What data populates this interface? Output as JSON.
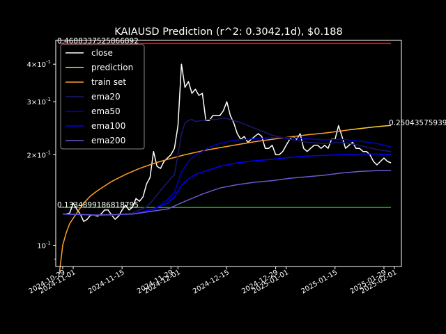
{
  "chart_data": {
    "type": "line",
    "title": "KAIAUSD Prediction (r^2: 0.3042,1d), $0.188",
    "xlabel": "",
    "ylabel": "",
    "y_scale": "log",
    "ylim": [
      0.085,
      0.48
    ],
    "xlim": [
      "2024-10-27",
      "2025-02-03"
    ],
    "grid": false,
    "legend_position": "top-left",
    "x_ticks": [
      "2024-10-29",
      "2024-11-01",
      "2024-11-15",
      "2024-11-29",
      "2024-12-01",
      "2024-12-15",
      "2024-12-29",
      "2025-01-01",
      "2025-01-15",
      "2025-01-29",
      "2025-02-01"
    ],
    "y_ticks": [
      {
        "value": 0.1,
        "label": "10^-1"
      },
      {
        "value": 0.2,
        "label": "2×10^-1"
      },
      {
        "value": 0.3,
        "label": "3×10^-1"
      },
      {
        "value": 0.4,
        "label": "4×10^-1"
      }
    ],
    "annotations": [
      {
        "text": "0.4688337525866892",
        "x": "2024-10-29",
        "y": 0.4688
      },
      {
        "text": "0.1334899186818795",
        "x": "2024-10-29",
        "y": 0.1335
      },
      {
        "text": "0.25043575939",
        "x": "2025-02-01",
        "y": 0.2504
      }
    ],
    "hlines": [
      {
        "y": 0.4688,
        "color": "#ff0000"
      },
      {
        "y": 0.1335,
        "color": "#00c000"
      }
    ],
    "start_date": "2024-10-29",
    "series": [
      {
        "name": "close",
        "color": "#ffffff",
        "days": [
          0,
          1,
          2,
          3,
          4,
          5,
          6,
          7,
          8,
          9,
          10,
          11,
          12,
          13,
          14,
          15,
          16,
          17,
          18,
          19,
          20,
          21,
          22,
          23,
          24,
          25,
          26,
          27,
          28,
          29,
          30,
          31,
          32,
          33,
          34,
          35,
          36,
          37,
          38,
          39,
          40,
          41,
          42,
          43,
          44,
          45,
          46,
          47,
          48,
          49,
          50,
          51,
          52,
          53,
          54,
          55,
          56,
          57,
          58,
          59,
          60,
          61,
          62,
          63,
          64,
          65,
          66,
          67,
          68,
          69,
          70,
          71,
          72,
          73,
          74,
          75,
          76,
          77,
          78,
          79,
          80,
          81,
          82,
          83,
          84,
          85,
          86,
          87,
          88,
          89,
          90,
          91,
          92,
          93,
          94
        ],
        "values": [
          0.127,
          0.127,
          0.128,
          0.138,
          0.132,
          0.127,
          0.12,
          0.122,
          0.126,
          0.126,
          0.125,
          0.127,
          0.131,
          0.131,
          0.126,
          0.122,
          0.125,
          0.131,
          0.136,
          0.131,
          0.134,
          0.143,
          0.14,
          0.145,
          0.16,
          0.168,
          0.205,
          0.183,
          0.18,
          0.19,
          0.195,
          0.2,
          0.21,
          0.25,
          0.4,
          0.335,
          0.35,
          0.32,
          0.33,
          0.315,
          0.32,
          0.26,
          0.26,
          0.27,
          0.27,
          0.27,
          0.28,
          0.3,
          0.27,
          0.255,
          0.235,
          0.225,
          0.23,
          0.22,
          0.225,
          0.23,
          0.235,
          0.23,
          0.21,
          0.21,
          0.215,
          0.2,
          0.2,
          0.205,
          0.215,
          0.225,
          0.23,
          0.225,
          0.235,
          0.21,
          0.205,
          0.21,
          0.215,
          0.215,
          0.21,
          0.215,
          0.21,
          0.225,
          0.225,
          0.25,
          0.23,
          0.21,
          0.215,
          0.22,
          0.21,
          0.21,
          0.205,
          0.205,
          0.2,
          0.19,
          0.185,
          0.19,
          0.195,
          0.19,
          0.188
        ]
      },
      {
        "name": "prediction",
        "color": "#ffd23c",
        "days": [
          82,
          86,
          90,
          94
        ],
        "values": [
          0.242,
          0.245,
          0.248,
          0.2504
        ]
      },
      {
        "name": "train set",
        "color": "#ffa028",
        "days": [
          -1,
          0,
          1,
          2,
          4,
          6,
          8,
          10,
          14,
          18,
          22,
          26,
          30,
          35,
          40,
          45,
          50,
          55,
          60,
          65,
          70,
          75,
          80,
          82
        ],
        "values": [
          0.08,
          0.1,
          0.11,
          0.118,
          0.128,
          0.138,
          0.146,
          0.152,
          0.163,
          0.172,
          0.18,
          0.187,
          0.193,
          0.2,
          0.206,
          0.211,
          0.216,
          0.221,
          0.225,
          0.229,
          0.233,
          0.236,
          0.24,
          0.242
        ]
      },
      {
        "name": "ema20",
        "color": "#191970",
        "days": [
          0,
          5,
          10,
          15,
          20,
          24,
          26,
          28,
          30,
          32,
          33,
          34,
          35,
          36,
          37,
          38,
          40,
          42,
          44,
          46,
          48,
          50,
          55,
          60,
          65,
          70,
          75,
          80,
          85,
          90,
          94
        ],
        "values": [
          0.127,
          0.127,
          0.126,
          0.126,
          0.128,
          0.134,
          0.142,
          0.152,
          0.162,
          0.172,
          0.2,
          0.235,
          0.255,
          0.26,
          0.262,
          0.258,
          0.26,
          0.262,
          0.262,
          0.265,
          0.262,
          0.258,
          0.245,
          0.232,
          0.225,
          0.22,
          0.218,
          0.22,
          0.215,
          0.208,
          0.205
        ]
      },
      {
        "name": "ema50",
        "color": "#0000cd",
        "days": [
          0,
          10,
          20,
          25,
          28,
          30,
          32,
          34,
          36,
          38,
          40,
          42,
          45,
          48,
          50,
          55,
          60,
          65,
          70,
          75,
          80,
          85,
          90,
          94
        ],
        "values": [
          0.127,
          0.126,
          0.127,
          0.13,
          0.136,
          0.142,
          0.15,
          0.175,
          0.19,
          0.2,
          0.205,
          0.212,
          0.218,
          0.222,
          0.224,
          0.226,
          0.228,
          0.228,
          0.226,
          0.224,
          0.225,
          0.222,
          0.218,
          0.212
        ]
      },
      {
        "name": "ema100",
        "color": "#0000ff",
        "days": [
          0,
          10,
          20,
          26,
          30,
          32,
          34,
          36,
          38,
          40,
          45,
          50,
          55,
          60,
          65,
          70,
          75,
          80,
          85,
          90,
          94
        ],
        "values": [
          0.127,
          0.126,
          0.127,
          0.132,
          0.138,
          0.145,
          0.158,
          0.166,
          0.172,
          0.175,
          0.183,
          0.188,
          0.191,
          0.193,
          0.196,
          0.198,
          0.199,
          0.2,
          0.201,
          0.201,
          0.2
        ]
      },
      {
        "name": "ema200",
        "color": "#6a5acd",
        "days": [
          0,
          10,
          20,
          30,
          35,
          40,
          45,
          50,
          55,
          60,
          65,
          70,
          75,
          80,
          85,
          90,
          94
        ],
        "values": [
          0.127,
          0.126,
          0.127,
          0.132,
          0.14,
          0.148,
          0.155,
          0.159,
          0.162,
          0.164,
          0.167,
          0.169,
          0.171,
          0.174,
          0.176,
          0.177,
          0.177
        ]
      }
    ]
  }
}
